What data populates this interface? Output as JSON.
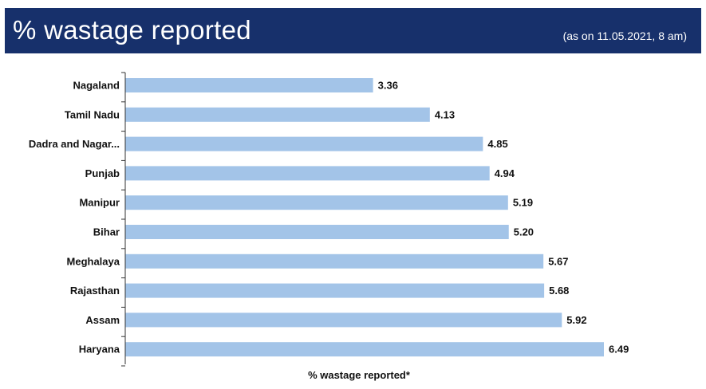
{
  "header": {
    "title": "% wastage reported",
    "subtitle": "(as on 11.05.2021, 8 am)",
    "background_color": "#17306b",
    "text_color": "#ffffff"
  },
  "chart_data": {
    "type": "bar",
    "orientation": "horizontal",
    "categories": [
      "Nagaland",
      "Tamil Nadu",
      "Dadra and Nagar...",
      "Punjab",
      "Manipur",
      "Bihar",
      "Meghalaya",
      "Rajasthan",
      "Assam",
      "Haryana"
    ],
    "values": [
      3.36,
      4.13,
      4.85,
      4.94,
      5.19,
      5.2,
      5.67,
      5.68,
      5.92,
      6.49
    ],
    "value_labels": [
      "3.36",
      "4.13",
      "4.85",
      "4.94",
      "5.19",
      "5.20",
      "5.67",
      "5.68",
      "5.92",
      "6.49"
    ],
    "xlabel": "% wastage reported*",
    "ylabel": "",
    "xlim": [
      0,
      6.49
    ],
    "grid": false,
    "legend": "none",
    "bar_color": "#a3c4e8"
  }
}
